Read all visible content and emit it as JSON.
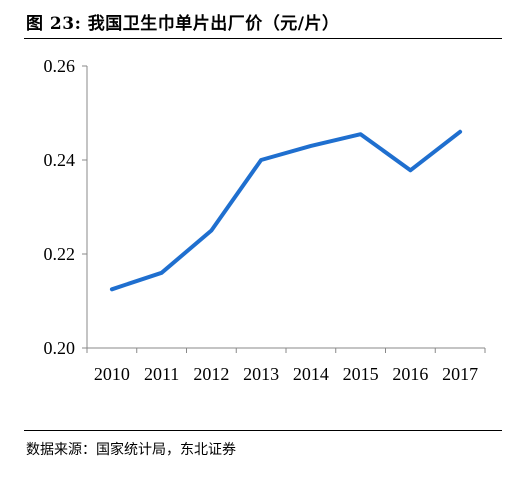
{
  "figure": {
    "title": "图  23:  我国卫生巾单片出厂价（元/片）",
    "source": "数据来源：国家统计局，东北证券"
  },
  "chart_data": {
    "type": "line",
    "title": "",
    "xlabel": "",
    "ylabel": "",
    "categories": [
      "2010",
      "2011",
      "2012",
      "2013",
      "2014",
      "2015",
      "2016",
      "2017"
    ],
    "series": [
      {
        "values": [
          0.2125,
          0.216,
          0.225,
          0.24,
          0.243,
          0.2455,
          0.2378,
          0.246
        ]
      }
    ],
    "ylim": [
      0.2,
      0.26
    ],
    "yticks": [
      "0.20",
      "0.22",
      "0.24",
      "0.26"
    ],
    "grid": false,
    "legend": "none",
    "line_color": "#1f6fcf"
  }
}
